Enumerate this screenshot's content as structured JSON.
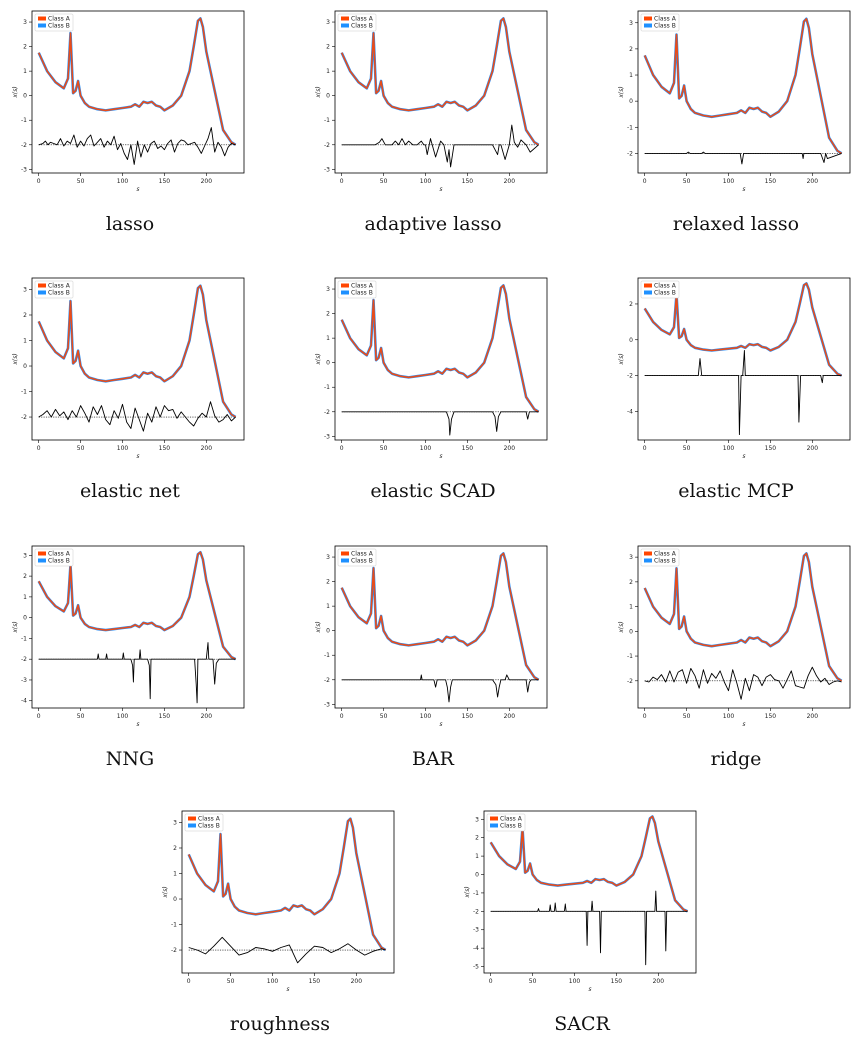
{
  "legend_entries": [
    {
      "name": "Class A",
      "color": "#ff4500"
    },
    {
      "name": "Class B",
      "color": "#1e90ff"
    }
  ],
  "x_ticks": [
    0,
    50,
    100,
    150,
    200
  ],
  "xlabel": "s",
  "ylabel": "x(s)",
  "mean_curve": {
    "s": [
      0,
      10,
      20,
      30,
      35,
      38,
      41,
      44,
      47,
      50,
      55,
      60,
      70,
      80,
      90,
      100,
      110,
      115,
      120,
      125,
      130,
      135,
      140,
      145,
      150,
      160,
      170,
      180,
      185,
      190,
      193,
      196,
      200,
      210,
      220,
      230,
      235
    ],
    "x": [
      1.75,
      1.0,
      0.55,
      0.3,
      0.7,
      2.55,
      0.1,
      0.2,
      0.6,
      0.0,
      -0.3,
      -0.45,
      -0.55,
      -0.6,
      -0.55,
      -0.5,
      -0.45,
      -0.35,
      -0.45,
      -0.25,
      -0.3,
      -0.25,
      -0.4,
      -0.45,
      -0.6,
      -0.4,
      0.0,
      1.0,
      2.0,
      3.05,
      3.15,
      2.8,
      1.8,
      0.2,
      -1.4,
      -1.9,
      -2.0
    ]
  },
  "chart_data": [
    {
      "type": "line",
      "caption": "lasso",
      "xlim": [
        -8,
        245
      ],
      "ylim": [
        -3.15,
        3.45
      ],
      "y_ticks": [
        -3,
        -2,
        -1,
        0,
        1,
        2,
        3
      ],
      "baseline": -2,
      "coef": {
        "s": [
          0,
          5,
          8,
          11,
          14,
          18,
          22,
          26,
          30,
          34,
          38,
          42,
          46,
          50,
          54,
          58,
          62,
          66,
          70,
          74,
          78,
          82,
          86,
          90,
          94,
          98,
          102,
          106,
          110,
          114,
          118,
          122,
          126,
          130,
          134,
          138,
          142,
          146,
          150,
          154,
          158,
          162,
          166,
          170,
          174,
          178,
          182,
          186,
          190,
          194,
          198,
          202,
          206,
          210,
          214,
          218,
          222,
          226,
          230,
          235
        ],
        "v": [
          -2,
          -1.95,
          -1.85,
          -2.0,
          -1.9,
          -1.95,
          -2.0,
          -1.75,
          -2.05,
          -1.85,
          -1.95,
          -1.6,
          -2.1,
          -1.85,
          -2.05,
          -1.75,
          -1.6,
          -2.05,
          -1.9,
          -1.75,
          -2.1,
          -1.85,
          -2.0,
          -1.65,
          -2.2,
          -1.95,
          -2.35,
          -2.6,
          -2.0,
          -2.8,
          -1.85,
          -2.5,
          -2.0,
          -2.3,
          -1.95,
          -1.85,
          -2.15,
          -2.05,
          -2.2,
          -1.95,
          -1.8,
          -2.3,
          -1.95,
          -1.8,
          -1.85,
          -2.0,
          -1.95,
          -1.9,
          -2.1,
          -2.35,
          -2.05,
          -1.75,
          -1.3,
          -2.3,
          -1.9,
          -2.1,
          -2.45,
          -2.1,
          -1.95,
          -2.0
        ]
      }
    },
    {
      "type": "line",
      "caption": "adaptive lasso",
      "xlim": [
        -8,
        245
      ],
      "ylim": [
        -3.15,
        3.45
      ],
      "y_ticks": [
        -3,
        -2,
        -1,
        0,
        1,
        2,
        3
      ],
      "baseline": -2,
      "coef": {
        "s": [
          0,
          40,
          45,
          48,
          52,
          60,
          64,
          68,
          72,
          76,
          80,
          85,
          90,
          95,
          98,
          100,
          102,
          106,
          108,
          112,
          118,
          122,
          126,
          128,
          130,
          134,
          140,
          180,
          186,
          188,
          190,
          195,
          200,
          203,
          206,
          210,
          214,
          220,
          225,
          235
        ],
        "v": [
          -2,
          -2,
          -1.9,
          -1.75,
          -2.0,
          -2.0,
          -1.85,
          -2.0,
          -1.75,
          -2.0,
          -1.85,
          -2.0,
          -2.0,
          -1.85,
          -2.0,
          -2.0,
          -2.4,
          -1.75,
          -2.0,
          -2.5,
          -1.85,
          -2.0,
          -2.7,
          -2.2,
          -2.9,
          -2.0,
          -2.0,
          -2.0,
          -2.4,
          -2.0,
          -2.0,
          -2.6,
          -2.0,
          -1.2,
          -1.9,
          -2.1,
          -1.8,
          -2.0,
          -2.3,
          -2.0
        ]
      }
    },
    {
      "type": "line",
      "caption": "relaxed lasso",
      "xlim": [
        -8,
        245
      ],
      "ylim": [
        -2.75,
        3.45
      ],
      "y_ticks": [
        -2,
        -1,
        0,
        1,
        2,
        3
      ],
      "baseline": -2,
      "coef": {
        "s": [
          0,
          50,
          52,
          54,
          60,
          68,
          70,
          72,
          110,
          114,
          116,
          118,
          130,
          180,
          188,
          189,
          190,
          192,
          200,
          210,
          214,
          216,
          218,
          235
        ],
        "v": [
          -2,
          -2,
          -1.95,
          -2.0,
          -2.0,
          -2.0,
          -1.95,
          -2.0,
          -2.0,
          -2.0,
          -2.4,
          -2.0,
          -2.0,
          -2.0,
          -2.0,
          -2.2,
          -2.0,
          -2.0,
          -2.0,
          -2.0,
          -2.35,
          -2.0,
          -2.2,
          -2.0
        ]
      }
    },
    {
      "type": "line",
      "caption": "elastic net",
      "xlim": [
        -8,
        245
      ],
      "ylim": [
        -2.9,
        3.45
      ],
      "y_ticks": [
        -2,
        -1,
        0,
        1,
        2,
        3
      ],
      "baseline": -2,
      "coef": {
        "s": [
          0,
          5,
          10,
          15,
          20,
          25,
          30,
          35,
          40,
          45,
          50,
          55,
          60,
          65,
          70,
          75,
          80,
          85,
          90,
          95,
          100,
          105,
          110,
          115,
          120,
          125,
          130,
          135,
          140,
          145,
          150,
          155,
          160,
          165,
          170,
          175,
          180,
          185,
          190,
          195,
          200,
          205,
          210,
          215,
          220,
          225,
          230,
          235
        ],
        "v": [
          -2,
          -1.9,
          -1.75,
          -2.0,
          -1.7,
          -1.95,
          -1.8,
          -2.1,
          -1.75,
          -2.0,
          -1.55,
          -1.85,
          -2.2,
          -1.6,
          -1.9,
          -1.55,
          -2.1,
          -2.3,
          -1.75,
          -2.05,
          -1.5,
          -2.2,
          -2.45,
          -1.65,
          -2.1,
          -2.55,
          -1.85,
          -2.2,
          -1.6,
          -2.0,
          -1.55,
          -1.75,
          -1.7,
          -2.05,
          -1.8,
          -2.0,
          -2.2,
          -2.35,
          -2.05,
          -1.85,
          -2.0,
          -1.4,
          -1.95,
          -2.2,
          -2.1,
          -1.9,
          -2.15,
          -2.0
        ]
      }
    },
    {
      "type": "line",
      "caption": "elastic SCAD",
      "xlim": [
        -8,
        245
      ],
      "ylim": [
        -3.15,
        3.45
      ],
      "y_ticks": [
        -3,
        -2,
        -1,
        0,
        1,
        2,
        3
      ],
      "baseline": -2,
      "coef": {
        "s": [
          0,
          125,
          128,
          129,
          131,
          134,
          180,
          183,
          185,
          187,
          190,
          220,
          222,
          224,
          226,
          235
        ],
        "v": [
          -2,
          -2,
          -2.3,
          -2.95,
          -2.3,
          -2.0,
          -2.0,
          -2.2,
          -2.8,
          -2.2,
          -2.0,
          -2.0,
          -2.3,
          -2.0,
          -2.0,
          -2.0
        ]
      }
    },
    {
      "type": "line",
      "caption": "elastic MCP",
      "xlim": [
        -8,
        245
      ],
      "ylim": [
        -5.6,
        3.45
      ],
      "y_ticks": [
        -4,
        -2,
        0,
        2
      ],
      "baseline": -2,
      "coef": {
        "s": [
          0,
          64,
          66,
          68,
          110,
          112,
          113,
          115,
          117,
          119,
          120,
          122,
          180,
          183,
          184,
          186,
          210,
          212,
          213,
          215,
          235
        ],
        "v": [
          -2,
          -2,
          -1.05,
          -2.0,
          -2.0,
          -2.0,
          -5.3,
          -2.0,
          -2.0,
          -0.6,
          -2.0,
          -2.0,
          -2.0,
          -2.0,
          -4.6,
          -2.0,
          -2.0,
          -2.4,
          -2.0,
          -2.0,
          -2.0
        ]
      }
    },
    {
      "type": "line",
      "caption": "NNG",
      "xlim": [
        -8,
        245
      ],
      "ylim": [
        -4.35,
        3.45
      ],
      "y_ticks": [
        -4,
        -3,
        -2,
        -1,
        0,
        1,
        2,
        3
      ],
      "baseline": -2,
      "coef": {
        "s": [
          0,
          70,
          71,
          72,
          80,
          81,
          82,
          100,
          101,
          102,
          110,
          112,
          113,
          114,
          120,
          121,
          122,
          130,
          132,
          133,
          134,
          186,
          188,
          189,
          190,
          200,
          202,
          203,
          205,
          208,
          210,
          212,
          215,
          235
        ],
        "v": [
          -2,
          -2,
          -1.75,
          -2,
          -2,
          -1.75,
          -2,
          -2,
          -1.7,
          -2,
          -2,
          -2.3,
          -3.1,
          -2,
          -2,
          -1.55,
          -2,
          -2,
          -2.3,
          -3.9,
          -2,
          -2,
          -3.2,
          -4.1,
          -2,
          -2,
          -1.2,
          -2,
          -2,
          -2,
          -3.2,
          -2.2,
          -2,
          -2
        ]
      }
    },
    {
      "type": "line",
      "caption": "BAR",
      "xlim": [
        -8,
        245
      ],
      "ylim": [
        -3.15,
        3.45
      ],
      "y_ticks": [
        -3,
        -2,
        -1,
        0,
        1,
        2,
        3
      ],
      "baseline": -2,
      "coef": {
        "s": [
          0,
          94,
          95,
          96,
          110,
          112,
          114,
          124,
          126,
          128,
          130,
          132,
          180,
          184,
          186,
          188,
          190,
          195,
          197,
          200,
          220,
          222,
          224,
          226,
          235
        ],
        "v": [
          -2,
          -2,
          -1.8,
          -2,
          -2,
          -2.3,
          -2,
          -2,
          -2.3,
          -2.9,
          -2.3,
          -2,
          -2,
          -2.2,
          -2.7,
          -2.3,
          -2,
          -2,
          -1.8,
          -2,
          -2,
          -2.5,
          -2.1,
          -2,
          -2
        ]
      }
    },
    {
      "type": "line",
      "caption": "ridge",
      "xlim": [
        -8,
        245
      ],
      "ylim": [
        -3.1,
        3.45
      ],
      "y_ticks": [
        -2,
        -1,
        0,
        1,
        2,
        3
      ],
      "baseline": -2,
      "coef": {
        "s": [
          0,
          5,
          10,
          15,
          20,
          25,
          30,
          35,
          40,
          45,
          50,
          55,
          60,
          65,
          70,
          75,
          80,
          85,
          90,
          95,
          100,
          105,
          110,
          115,
          120,
          125,
          130,
          135,
          140,
          145,
          150,
          155,
          160,
          165,
          170,
          175,
          180,
          185,
          190,
          195,
          200,
          205,
          210,
          215,
          220,
          225,
          230,
          235
        ],
        "v": [
          -2,
          -2.05,
          -1.85,
          -1.95,
          -1.75,
          -2.05,
          -1.6,
          -2.05,
          -1.65,
          -1.55,
          -2.1,
          -1.5,
          -1.8,
          -2.3,
          -1.55,
          -2.1,
          -1.7,
          -1.9,
          -1.6,
          -2.05,
          -2.4,
          -1.55,
          -2.1,
          -2.75,
          -1.9,
          -2.4,
          -1.75,
          -1.85,
          -2.2,
          -1.85,
          -1.75,
          -1.95,
          -2.0,
          -2.3,
          -1.95,
          -1.6,
          -2.2,
          -2.25,
          -2.3,
          -1.8,
          -1.45,
          -1.8,
          -2.05,
          -1.9,
          -2.15,
          -2.05,
          -2.0,
          -2.05
        ]
      }
    },
    {
      "type": "line",
      "caption": "roughness",
      "xlim": [
        -8,
        245
      ],
      "ylim": [
        -2.9,
        3.45
      ],
      "y_ticks": [
        -2,
        -1,
        0,
        1,
        2,
        3
      ],
      "baseline": -2,
      "coef": {
        "s": [
          0,
          10,
          20,
          30,
          40,
          50,
          60,
          70,
          80,
          90,
          100,
          110,
          120,
          130,
          140,
          150,
          160,
          170,
          180,
          190,
          200,
          210,
          220,
          230,
          235
        ],
        "v": [
          -1.9,
          -2.0,
          -2.15,
          -1.85,
          -1.5,
          -1.85,
          -2.2,
          -2.1,
          -1.9,
          -1.95,
          -2.05,
          -1.9,
          -1.8,
          -2.5,
          -2.15,
          -1.85,
          -1.9,
          -2.1,
          -1.95,
          -1.75,
          -2.0,
          -2.2,
          -2.05,
          -1.95,
          -2.0
        ]
      }
    },
    {
      "type": "line",
      "caption": "SACR",
      "xlim": [
        -8,
        245
      ],
      "ylim": [
        -5.35,
        3.45
      ],
      "y_ticks": [
        -5,
        -4,
        -3,
        -2,
        -1,
        0,
        1,
        2,
        3
      ],
      "baseline": -2,
      "coef": {
        "s": [
          0,
          56,
          57,
          58,
          70,
          71,
          72,
          76,
          77,
          78,
          88,
          89,
          90,
          114,
          115,
          116,
          120,
          121,
          122,
          130,
          131,
          132,
          184,
          185,
          186,
          196,
          197,
          198,
          208,
          209,
          210,
          235
        ],
        "v": [
          -2,
          -2,
          -1.85,
          -2,
          -2,
          -1.65,
          -2,
          -2,
          -1.55,
          -2,
          -2,
          -1.6,
          -2,
          -2,
          -3.85,
          -2,
          -2,
          -1.45,
          -2,
          -2,
          -4.25,
          -2,
          -2,
          -4.9,
          -2,
          -2,
          -0.9,
          -2,
          -2,
          -4.15,
          -2,
          -2
        ]
      }
    }
  ]
}
